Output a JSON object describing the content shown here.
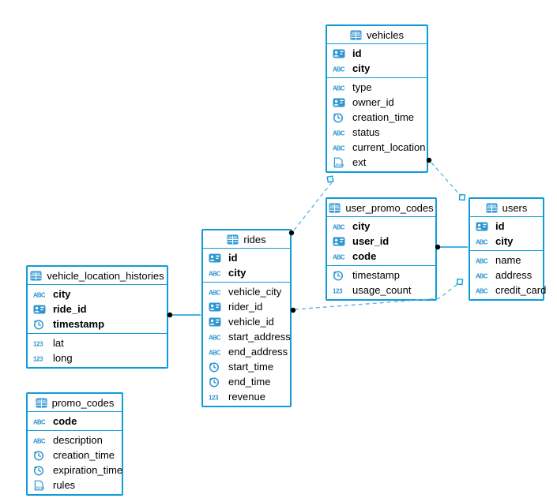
{
  "diagram": {
    "colors": {
      "accent": "#0f9cd8",
      "icon_blue": "#2e96d0",
      "dashed_line": "#64b6e4",
      "endpoint_dot": "#000000"
    },
    "tables": [
      {
        "name": "vehicles",
        "key_fields": [
          {
            "name": "id",
            "type": "id"
          },
          {
            "name": "city",
            "type": "text"
          }
        ],
        "fields": [
          {
            "name": "type",
            "type": "text"
          },
          {
            "name": "owner_id",
            "type": "id"
          },
          {
            "name": "creation_time",
            "type": "time"
          },
          {
            "name": "status",
            "type": "text"
          },
          {
            "name": "current_location",
            "type": "text"
          },
          {
            "name": "ext",
            "type": "json"
          }
        ]
      },
      {
        "name": "user_promo_codes",
        "key_fields": [
          {
            "name": "city",
            "type": "text"
          },
          {
            "name": "user_id",
            "type": "id"
          },
          {
            "name": "code",
            "type": "text"
          }
        ],
        "fields": [
          {
            "name": "timestamp",
            "type": "time"
          },
          {
            "name": "usage_count",
            "type": "number"
          }
        ]
      },
      {
        "name": "users",
        "key_fields": [
          {
            "name": "id",
            "type": "id"
          },
          {
            "name": "city",
            "type": "text"
          }
        ],
        "fields": [
          {
            "name": "name",
            "type": "text"
          },
          {
            "name": "address",
            "type": "text"
          },
          {
            "name": "credit_card",
            "type": "text"
          }
        ]
      },
      {
        "name": "rides",
        "key_fields": [
          {
            "name": "id",
            "type": "id"
          },
          {
            "name": "city",
            "type": "text"
          }
        ],
        "fields": [
          {
            "name": "vehicle_city",
            "type": "text"
          },
          {
            "name": "rider_id",
            "type": "id"
          },
          {
            "name": "vehicle_id",
            "type": "id"
          },
          {
            "name": "start_address",
            "type": "text"
          },
          {
            "name": "end_address",
            "type": "text"
          },
          {
            "name": "start_time",
            "type": "time"
          },
          {
            "name": "end_time",
            "type": "time"
          },
          {
            "name": "revenue",
            "type": "number"
          }
        ]
      },
      {
        "name": "vehicle_location_histories",
        "key_fields": [
          {
            "name": "city",
            "type": "text"
          },
          {
            "name": "ride_id",
            "type": "id"
          },
          {
            "name": "timestamp",
            "type": "time"
          }
        ],
        "fields": [
          {
            "name": "lat",
            "type": "number"
          },
          {
            "name": "long",
            "type": "number"
          }
        ]
      },
      {
        "name": "promo_codes",
        "key_fields": [
          {
            "name": "code",
            "type": "text"
          }
        ],
        "fields": [
          {
            "name": "description",
            "type": "text"
          },
          {
            "name": "creation_time",
            "type": "time"
          },
          {
            "name": "expiration_time",
            "type": "time"
          },
          {
            "name": "rules",
            "type": "json"
          }
        ]
      }
    ],
    "relations": [
      {
        "from": "vehicles",
        "to": "rides",
        "style": "dashed"
      },
      {
        "from": "vehicles",
        "to": "users",
        "style": "dashed"
      },
      {
        "from": "rides",
        "to": "users",
        "style": "dashed"
      },
      {
        "from": "user_promo_codes",
        "to": "users",
        "style": "solid"
      },
      {
        "from": "vehicle_location_histories",
        "to": "rides",
        "style": "solid"
      }
    ]
  }
}
